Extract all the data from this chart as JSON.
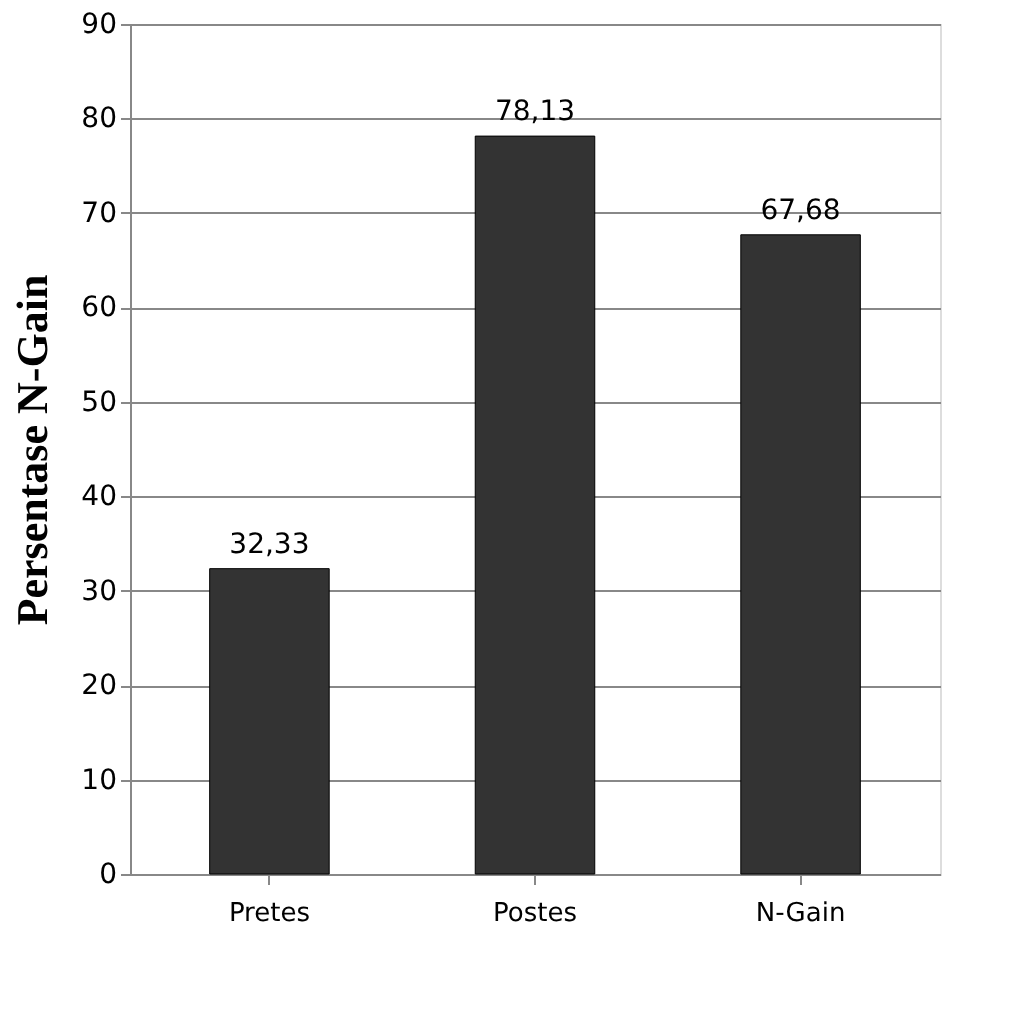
{
  "chart_data": {
    "type": "bar",
    "ylabel": "Persentase N-Gain",
    "categories": [
      "Pretes",
      "Postes",
      "N-Gain"
    ],
    "values": [
      32.33,
      78.13,
      67.68
    ],
    "value_labels": [
      "32,33",
      "78,13",
      "67,68"
    ],
    "color": "#333333",
    "ylim": [
      0,
      90
    ],
    "yticks": [
      0,
      10,
      20,
      30,
      40,
      50,
      60,
      70,
      80,
      90
    ],
    "grid": "y"
  }
}
